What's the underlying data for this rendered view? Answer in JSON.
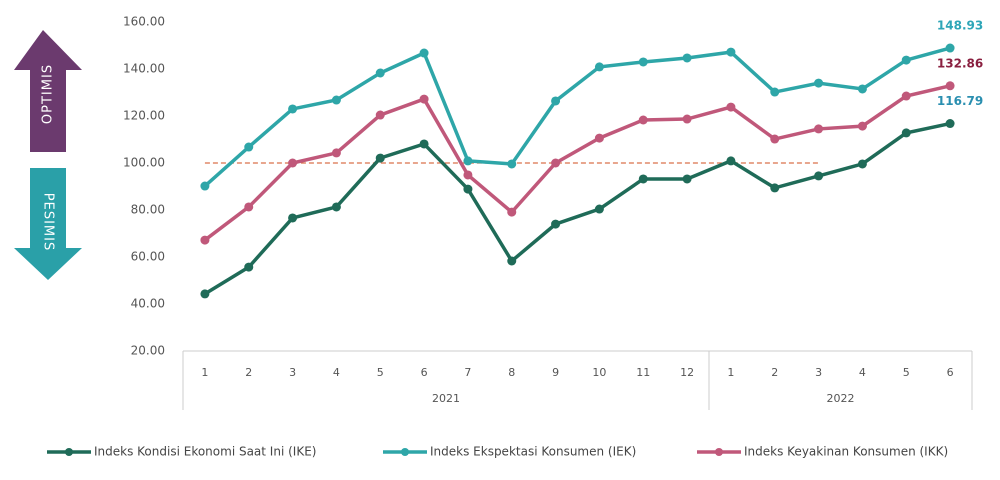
{
  "chart_data": {
    "type": "line",
    "categories": [
      "1",
      "2",
      "3",
      "4",
      "5",
      "6",
      "7",
      "8",
      "9",
      "10",
      "11",
      "12",
      "1",
      "2",
      "3",
      "4",
      "5",
      "6"
    ],
    "groups": [
      {
        "label": "2021",
        "count": 12
      },
      {
        "label": "2022",
        "count": 6
      }
    ],
    "series": [
      {
        "name": "Indeks Kondisi Ekonomi Saat Ini (IKE)",
        "color": "#1f6b58",
        "label_color": "#2a8fb0",
        "values": [
          44.3,
          55.7,
          76.6,
          81.3,
          102.1,
          108.1,
          88.9,
          58.3,
          74.0,
          80.4,
          93.2,
          93.2,
          100.9,
          89.4,
          94.5,
          99.6,
          112.8,
          116.79
        ]
      },
      {
        "name": "Indeks Ekspektasi Konsumen (IEK)",
        "color": "#2ea6a8",
        "label_color": "#2ea6b8",
        "values": [
          90.2,
          106.8,
          123.0,
          126.8,
          138.3,
          146.8,
          100.9,
          99.6,
          126.4,
          140.9,
          143.0,
          144.7,
          147.2,
          130.2,
          134.0,
          131.5,
          143.8,
          148.93
        ]
      },
      {
        "name": "Indeks Keyakinan Konsumen (IKK)",
        "color": "#c0587a",
        "label_color": "#8a2040",
        "values": [
          67.2,
          81.3,
          100.0,
          104.3,
          120.4,
          127.2,
          94.9,
          79.1,
          100.0,
          110.6,
          118.3,
          118.7,
          123.8,
          110.2,
          114.5,
          115.7,
          128.5,
          132.86
        ]
      }
    ],
    "ylim": [
      20,
      160
    ],
    "yticks": [
      {
        "value": 20,
        "label": "20.00"
      },
      {
        "value": 40,
        "label": "40.00"
      },
      {
        "value": 60,
        "label": "60.00"
      },
      {
        "value": 80,
        "label": "80.00"
      },
      {
        "value": 100,
        "label": "100.00"
      },
      {
        "value": 120,
        "label": "120.00"
      },
      {
        "value": 140,
        "label": "140.00"
      },
      {
        "value": 160,
        "label": "160.00"
      }
    ],
    "reference_line": {
      "value": 100,
      "color": "#d9704a"
    },
    "annotations": {
      "up": "OPTIMIS",
      "down": "PESIMIS"
    }
  }
}
